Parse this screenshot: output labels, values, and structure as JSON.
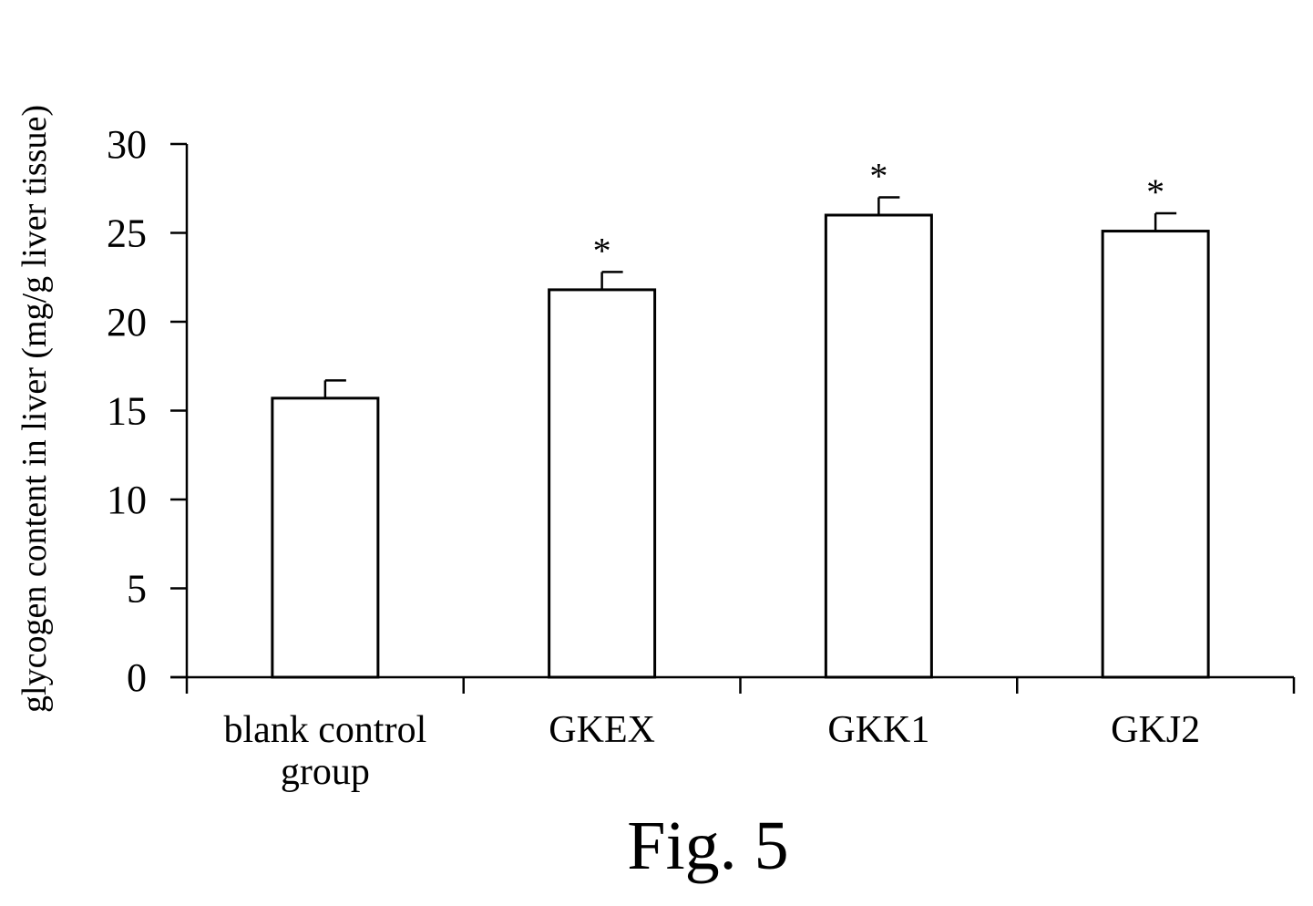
{
  "chart_data": {
    "type": "bar",
    "categories": [
      [
        "blank control",
        "group"
      ],
      [
        "GKEX"
      ],
      [
        "GKK1"
      ],
      [
        "GKJ2"
      ]
    ],
    "values": [
      15.7,
      21.8,
      26.0,
      25.1
    ],
    "error": [
      1.0,
      1.0,
      1.0,
      1.0
    ],
    "significance": [
      "",
      "*",
      "*",
      "*"
    ],
    "title": "",
    "xlabel": "",
    "ylabel": "glycogen content in liver (mg/g liver tissue)",
    "ylim": [
      0,
      30
    ],
    "yticks": [
      0,
      5,
      10,
      15,
      20,
      25,
      30
    ],
    "grid": false,
    "bar_fill": "#ffffff",
    "bar_stroke": "#000000"
  },
  "caption": "Fig. 5"
}
